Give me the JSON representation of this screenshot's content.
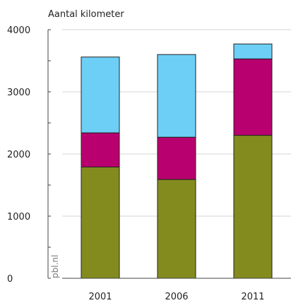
{
  "chart_data": {
    "type": "bar",
    "stacked": true,
    "ylabel": "Aantal kilometer",
    "source": "pbl.nl",
    "categories": [
      "2001",
      "2006",
      "2011"
    ],
    "ylim": [
      0,
      4000
    ],
    "yticks": [
      0,
      1000,
      2000,
      3000,
      4000
    ],
    "ytick_labels": [
      "0",
      "1000",
      "2000",
      "3000",
      "4000"
    ],
    "grid": true,
    "series": [
      {
        "values": [
          1790,
          1590,
          2300
        ],
        "color": "#838b1f"
      },
      {
        "values": [
          550,
          680,
          1230
        ],
        "color": "#b8006f"
      },
      {
        "values": [
          1220,
          1330,
          240
        ],
        "color": "#6dcff6"
      }
    ]
  }
}
